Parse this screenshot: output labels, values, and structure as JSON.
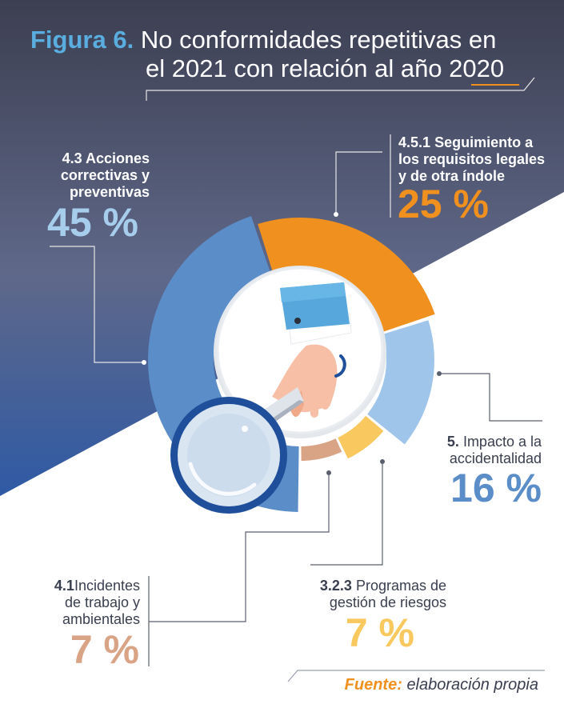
{
  "header": {
    "figure_label": "Figura 6.",
    "title_line1": "No conformidades repetitivas en",
    "title_line2": "el 2021 con relación al año 2020"
  },
  "colors": {
    "background_dark": "#3f4356",
    "background_mid": "#6a7394",
    "background_low": "#2f5aa5",
    "accent_blue": "#5aaedf",
    "accent_orange": "#f0901e"
  },
  "chart_data": {
    "type": "pie",
    "style": "donut",
    "title": "No conformidades repetitivas en el 2021 con relación al año 2020",
    "unit": "%",
    "slices": [
      {
        "code": "4.3",
        "label": "Acciones correctivas y preventivas",
        "value": 45,
        "color": "#5b8dc8"
      },
      {
        "code": "4.5.1",
        "label": "Seguimiento a los requisitos legales y de otra índole",
        "value": 25,
        "color": "#f0901e"
      },
      {
        "code": "5.",
        "label": "Impacto a la accidentalidad",
        "value": 16,
        "color": "#9fc6ea"
      },
      {
        "code": "3.2.3",
        "label": "Programas de gestión de riesgos",
        "value": 7,
        "color": "#f9c85e"
      },
      {
        "code": "4.1",
        "label": "Incidentes de trabajo y ambientales",
        "value": 7,
        "color": "#d9a386"
      }
    ],
    "display": {
      "s0": {
        "code": "4.3",
        "line1": "Acciones",
        "line2": "correctivas y",
        "line3": "preventivas",
        "pct": "45 %"
      },
      "s1": {
        "code": "4.5.1",
        "line1": "Seguimiento a",
        "line2": "los requisitos legales",
        "line3": "y de otra índole",
        "pct": "25 %"
      },
      "s2": {
        "code": "5.",
        "line1": "Impacto a la",
        "line2": "accidentalidad",
        "pct": "16 %"
      },
      "s3": {
        "code": "3.2.3",
        "line1": "Programas de",
        "line2": "gestión de riesgos",
        "pct": "7 %"
      },
      "s4": {
        "code": "4.1",
        "line1": "Incidentes",
        "line2": "de trabajo y",
        "line3": "ambientales",
        "pct": "7 %"
      }
    },
    "decoration": {
      "center_icon": "hand-magnifier-icon"
    }
  },
  "footer": {
    "source_label": "Fuente:",
    "source_text": "elaboración propia"
  }
}
